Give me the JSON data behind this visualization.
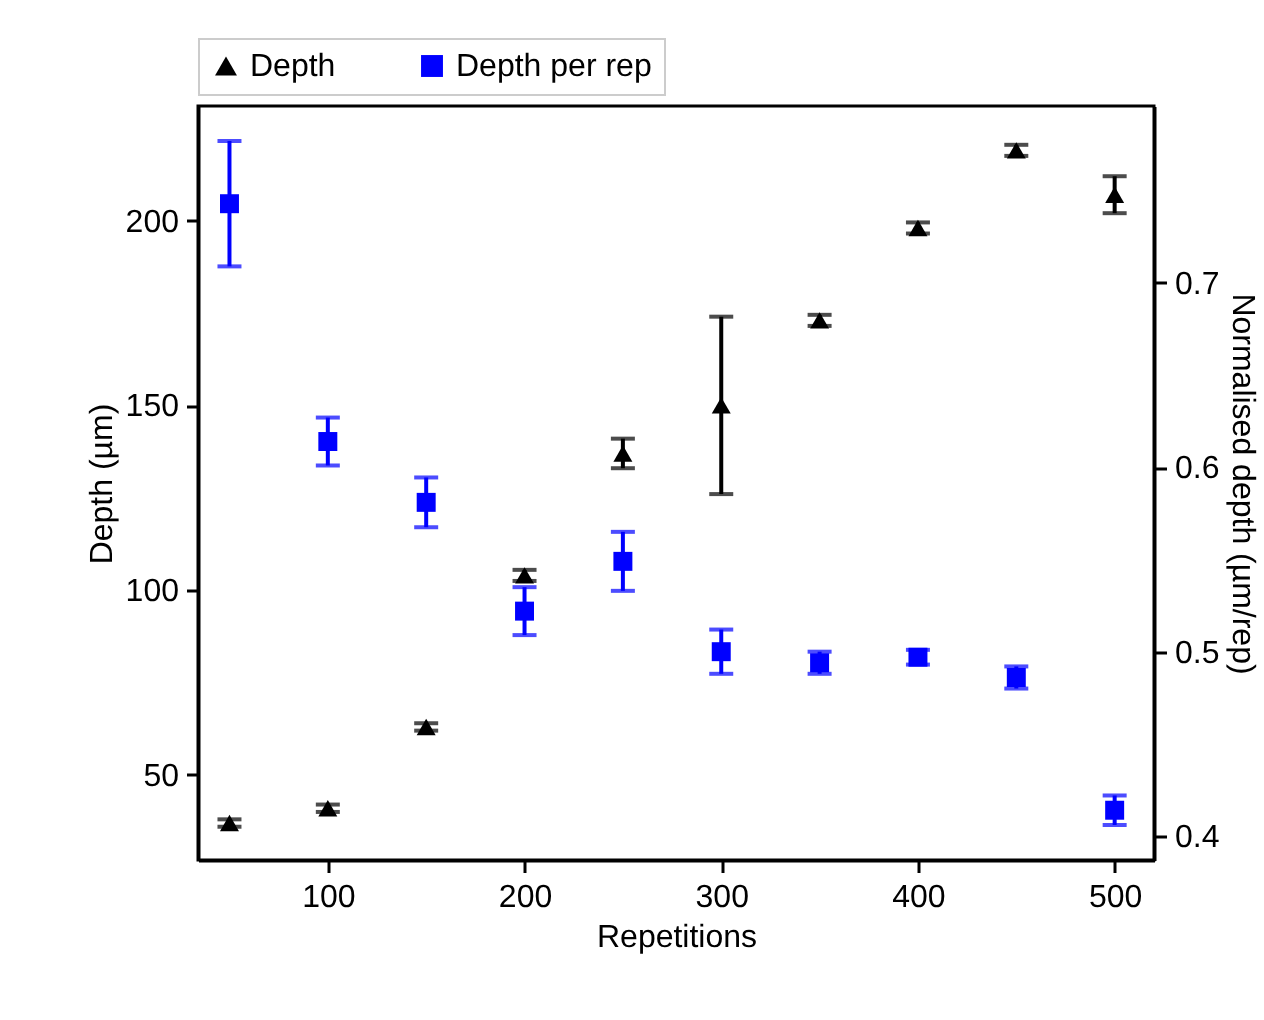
{
  "chart_data": {
    "type": "scatter",
    "xlabel": "Repetitions",
    "ylabel": "Depth (µm)",
    "y2label": "Normalised depth (µm/rep)",
    "x": [
      50,
      100,
      150,
      200,
      250,
      300,
      350,
      400,
      450,
      500
    ],
    "series": [
      {
        "name": "Depth",
        "color": "#000000",
        "marker": "triangle",
        "values": [
          37,
          41,
          63,
          104,
          137,
          150,
          173,
          198,
          219,
          207
        ],
        "errors": [
          1,
          1,
          1,
          1.5,
          4,
          24,
          1.5,
          1.5,
          1.5,
          5
        ]
      },
      {
        "name": "Depth per rep",
        "color": "#0000ff",
        "marker": "square",
        "axis": "y2",
        "values": [
          0.743,
          0.614,
          0.581,
          0.522,
          0.549,
          0.5,
          0.494,
          0.497,
          0.486,
          0.414
        ],
        "errors": [
          0.034,
          0.013,
          0.0135,
          0.013,
          0.016,
          0.012,
          0.006,
          0.004,
          0.006,
          0.008
        ]
      }
    ],
    "xlim": [
      34,
      520
    ],
    "xticks": [
      100,
      200,
      300,
      400,
      500
    ],
    "ylim": [
      27,
      231
    ],
    "yticks": [
      50,
      100,
      150,
      200
    ],
    "y2lim": [
      0.387,
      0.796
    ],
    "y2ticks": [
      0.4,
      0.5,
      0.6,
      0.7
    ],
    "legend": "top",
    "grid": false
  }
}
